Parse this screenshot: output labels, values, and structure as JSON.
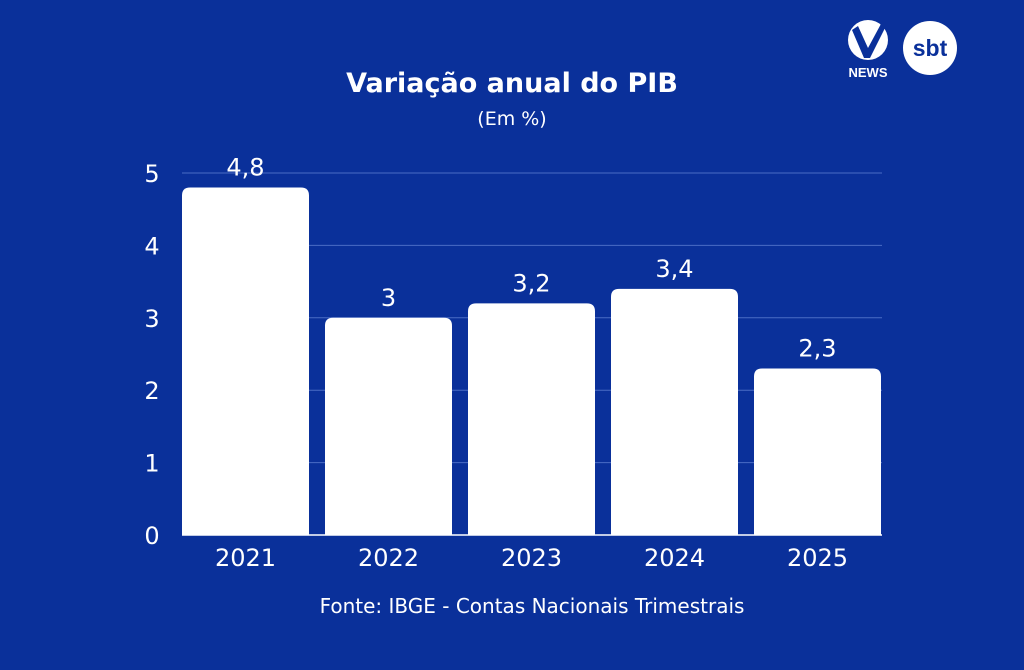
{
  "chart_data": {
    "type": "bar",
    "title": "Variação anual do PIB",
    "subtitle": "(Em %)",
    "categories": [
      "2021",
      "2022",
      "2023",
      "2024",
      "2025"
    ],
    "values": [
      4.8,
      3,
      3.2,
      3.4,
      2.3
    ],
    "data_labels": [
      "4,8",
      "3",
      "3,2",
      "3,4",
      "2,3"
    ],
    "ylim": [
      0,
      5
    ],
    "yticks": [
      "0",
      "1",
      "2",
      "3",
      "4",
      "5"
    ],
    "grid": true,
    "bar_color": "#ffffff",
    "background": "#0a309a",
    "source": "Fonte: IBGE - Contas Nacionais Trimestrais"
  },
  "logos": {
    "news": "NEWS",
    "sbt": "sbt"
  }
}
